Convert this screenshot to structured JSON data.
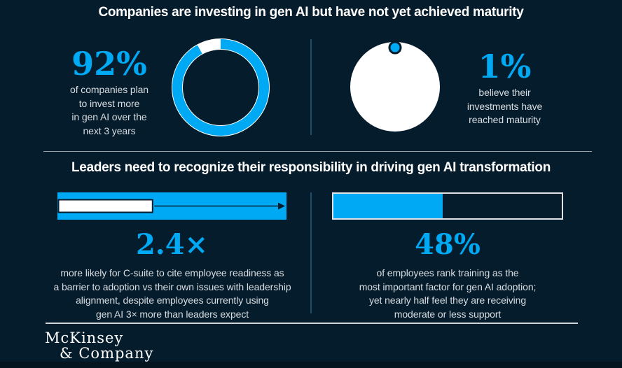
{
  "colors": {
    "background": "#051C2C",
    "accent_blue": "#00A9F4",
    "white": "#FFFFFF",
    "caption_gray": "#D8DDE1",
    "vertical_divider": "#1D4D6B",
    "horizontal_divider": "#98A1A8"
  },
  "top_section": {
    "title": "Companies are investing in gen AI but have not yet achieved maturity",
    "left": {
      "value": "92%",
      "caption": "of companies plan\nto invest more\nin gen AI over the\nnext 3 years"
    },
    "right": {
      "value": "1%",
      "caption": "believe their\ninvestments have\nreached maturity"
    }
  },
  "bottom_section": {
    "title": "Leaders need to recognize their responsibility in driving gen AI transformation",
    "left": {
      "value": "2.4×",
      "caption": "more likely for C-suite to cite employee readiness as\na barrier to adoption vs their own issues with leadership\nalignment, despite employees currently using\ngen AI 3× more than leaders expect"
    },
    "right": {
      "value": "48%",
      "caption": "of employees rank training as the\nmost important factor for gen AI adoption;\nyet nearly half feel they are receiving\nmoderate or less support"
    }
  },
  "footer": {
    "logo_line1": "McKinsey",
    "logo_line2": "& Company"
  },
  "chart_data": [
    {
      "type": "pie",
      "subtype": "donut",
      "value": 92,
      "unit": "%",
      "label": "92%",
      "description": "of companies plan to invest more in gen AI over the next 3 years",
      "arc_color": "#00A9F4",
      "remainder_color": "#FFFFFF"
    },
    {
      "type": "pie",
      "subtype": "dot-on-circle",
      "value": 1,
      "unit": "%",
      "label": "1%",
      "description": "believe their investments have reached maturity",
      "dot_color": "#00A9F4",
      "circle_color": "#FFFFFF"
    },
    {
      "type": "bar",
      "subtype": "ratio-arrow",
      "ratio": 2.4,
      "label": "2.4×",
      "description": "more likely for C-suite to cite employee readiness as a barrier to adoption vs their own issues with leadership alignment, despite employees currently using gen AI 3× more than leaders expect",
      "bar_color": "#00A9F4",
      "base_color": "#FFFFFF"
    },
    {
      "type": "bar",
      "subtype": "progress",
      "value": 48,
      "max": 100,
      "unit": "%",
      "label": "48%",
      "description": "of employees rank training as the most important factor for gen AI adoption; yet nearly half feel they are receiving moderate or less support",
      "fill_color": "#00A9F4"
    }
  ]
}
